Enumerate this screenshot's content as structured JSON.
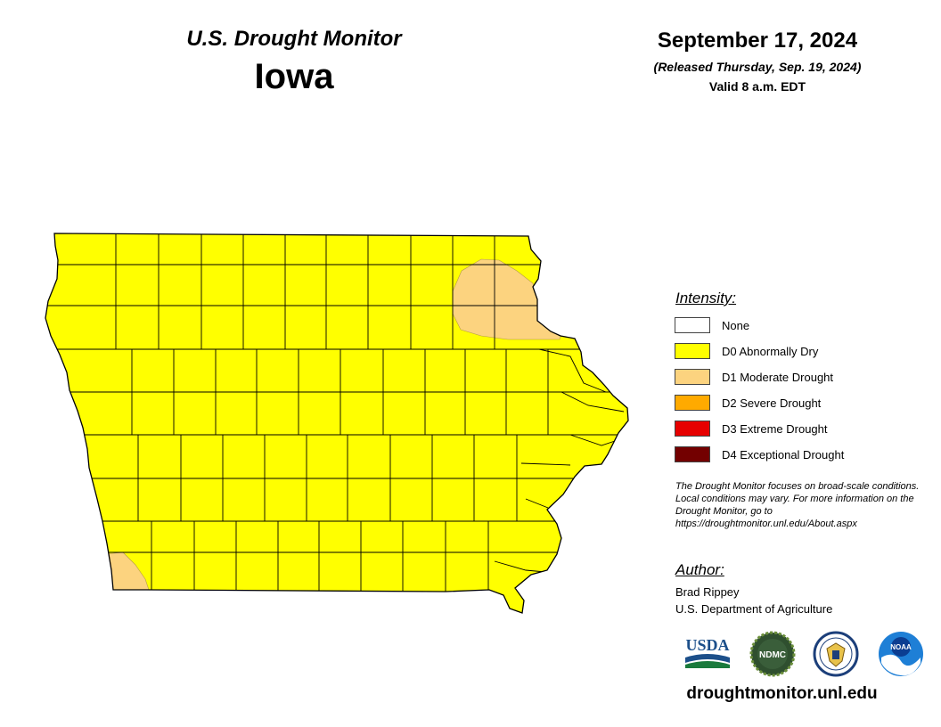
{
  "header": {
    "title": "U.S. Drought Monitor",
    "state": "Iowa",
    "date": "September 17, 2024",
    "released": "(Released Thursday, Sep. 19, 2024)",
    "valid": "Valid 8 a.m. EDT"
  },
  "legend": {
    "title": "Intensity:",
    "items": [
      {
        "label": "None",
        "color": "#ffffff"
      },
      {
        "label": "D0 Abnormally Dry",
        "color": "#ffff00"
      },
      {
        "label": "D1 Moderate Drought",
        "color": "#fcd37f"
      },
      {
        "label": "D2 Severe Drought",
        "color": "#ffaa00"
      },
      {
        "label": "D3 Extreme Drought",
        "color": "#e60000"
      },
      {
        "label": "D4 Exceptional Drought",
        "color": "#730000"
      }
    ]
  },
  "note": "The Drought Monitor focuses on broad-scale conditions. Local conditions may vary. For more information on the Drought Monitor, go to https://droughtmonitor.unl.edu/About.aspx",
  "author": {
    "title": "Author:",
    "name": "Brad Rippey",
    "org": "U.S. Department of Agriculture"
  },
  "logos": [
    {
      "name": "usda-logo",
      "text": "USDA"
    },
    {
      "name": "ndmc-logo",
      "text": "NDMC"
    },
    {
      "name": "doc-seal-logo",
      "text": ""
    },
    {
      "name": "noaa-logo",
      "text": "NOAA"
    }
  ],
  "site": "droughtmonitor.unl.edu",
  "map": {
    "state_fill": "#ffff00",
    "d1_fill": "#fcd37f",
    "border_color": "#000000"
  }
}
